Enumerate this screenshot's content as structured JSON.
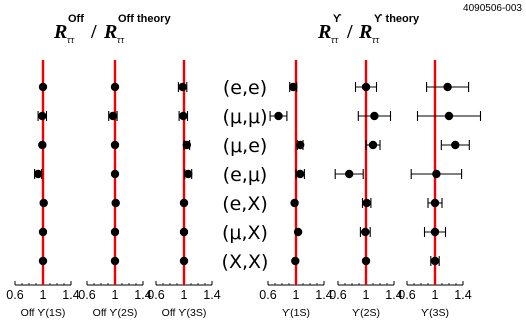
{
  "figure_id": "4090506-003",
  "titles": {
    "left": {
      "sym1": "R",
      "sub1": "ττ",
      "sup1": "Off",
      "slash": "/",
      "sym2": "R",
      "sub2": "ττ",
      "sup2": "Off theory"
    },
    "right": {
      "sym1": "R",
      "sub1": "ττ",
      "sup1": "ϒ",
      "slash": "/",
      "sym2": "R",
      "sub2": "ττ",
      "sup2": "ϒ theory"
    }
  },
  "row_labels": [
    "(e,e)",
    "(μ,μ)",
    "(μ,e)",
    "(e,μ)",
    "(e,X)",
    "(μ,X)",
    "(X,X)"
  ],
  "colors": {
    "reference_line": "#ee0000",
    "markers": "#000000",
    "axes": "#000000"
  },
  "chart_data": {
    "type": "scatter",
    "reference_value": 1,
    "panels": [
      {
        "name": "Off ϒ(1S)",
        "x_label": "Off  ϒ(1S)",
        "xlim": [
          0.6,
          1.4
        ],
        "ticks": [
          0.6,
          1,
          1.4
        ],
        "tick_labels": [
          "0.6",
          "1",
          "1.4"
        ],
        "points": [
          {
            "row": "(e,e)",
            "value": 1.0,
            "err": 0.0
          },
          {
            "row": "(μ,μ)",
            "value": 0.99,
            "err": 0.06
          },
          {
            "row": "(μ,e)",
            "value": 0.99,
            "err": 0.0
          },
          {
            "row": "(e,μ)",
            "value": 0.93,
            "err": 0.05
          },
          {
            "row": "(e,X)",
            "value": 1.01,
            "err": 0.0
          },
          {
            "row": "(μ,X)",
            "value": 1.0,
            "err": 0.0
          },
          {
            "row": "(X,X)",
            "value": 1.0,
            "err": 0.0
          }
        ]
      },
      {
        "name": "Off ϒ(2S)",
        "x_label": "Off  ϒ(2S)",
        "xlim": [
          0.6,
          1.4
        ],
        "ticks": [
          0.6,
          1,
          1.4
        ],
        "tick_labels": [
          "0.6",
          "1",
          "1.4"
        ],
        "points": [
          {
            "row": "(e,e)",
            "value": 1.0,
            "err": 0.0
          },
          {
            "row": "(μ,μ)",
            "value": 0.97,
            "err": 0.06
          },
          {
            "row": "(μ,e)",
            "value": 1.0,
            "err": 0.0
          },
          {
            "row": "(e,μ)",
            "value": 1.0,
            "err": 0.0
          },
          {
            "row": "(e,X)",
            "value": 1.01,
            "err": 0.0
          },
          {
            "row": "(μ,X)",
            "value": 1.0,
            "err": 0.0
          },
          {
            "row": "(X,X)",
            "value": 1.0,
            "err": 0.0
          }
        ]
      },
      {
        "name": "Off ϒ(3S)",
        "x_label": "Off  ϒ(3S)",
        "xlim": [
          0.6,
          1.4
        ],
        "ticks": [
          0.6,
          1,
          1.4
        ],
        "tick_labels": [
          "0.6",
          "1",
          "1.4"
        ],
        "points": [
          {
            "row": "(e,e)",
            "value": 0.98,
            "err": 0.06
          },
          {
            "row": "(μ,μ)",
            "value": 0.99,
            "err": 0.06
          },
          {
            "row": "(μ,e)",
            "value": 1.04,
            "err": 0.04
          },
          {
            "row": "(e,μ)",
            "value": 1.06,
            "err": 0.05
          },
          {
            "row": "(e,X)",
            "value": 1.0,
            "err": 0.0
          },
          {
            "row": "(μ,X)",
            "value": 1.0,
            "err": 0.0
          },
          {
            "row": "(X,X)",
            "value": 1.0,
            "err": 0.0
          }
        ]
      },
      {
        "name": "ϒ(1S)",
        "x_label": "ϒ(1S)",
        "xlim": [
          0.6,
          1.4
        ],
        "ticks": [
          0.6,
          1,
          1.4
        ],
        "tick_labels": [
          "0.6",
          "1",
          "1.4"
        ],
        "points": [
          {
            "row": "(e,e)",
            "value": 0.96,
            "err": 0.05
          },
          {
            "row": "(μ,μ)",
            "value": 0.75,
            "err": 0.12
          },
          {
            "row": "(μ,e)",
            "value": 1.06,
            "err": 0.04
          },
          {
            "row": "(e,μ)",
            "value": 1.06,
            "err": 0.06
          },
          {
            "row": "(e,X)",
            "value": 0.98,
            "err": 0.0
          },
          {
            "row": "(μ,X)",
            "value": 1.03,
            "err": 0.0
          },
          {
            "row": "(X,X)",
            "value": 0.99,
            "err": 0.0
          }
        ]
      },
      {
        "name": "ϒ(2S)",
        "x_label": "ϒ(2S)",
        "xlim": [
          0.6,
          1.4
        ],
        "ticks": [
          0.6,
          1,
          1.4
        ],
        "tick_labels": [
          "0.6",
          "1",
          "1.4"
        ],
        "points": [
          {
            "row": "(e,e)",
            "value": 1.0,
            "err": 0.15
          },
          {
            "row": "(μ,μ)",
            "value": 1.12,
            "err": 0.23
          },
          {
            "row": "(μ,e)",
            "value": 1.1,
            "err": 0.1
          },
          {
            "row": "(e,μ)",
            "value": 0.76,
            "err": 0.2
          },
          {
            "row": "(e,X)",
            "value": 1.01,
            "err": 0.06
          },
          {
            "row": "(μ,X)",
            "value": 0.99,
            "err": 0.07
          },
          {
            "row": "(X,X)",
            "value": 1.0,
            "err": 0.0
          }
        ]
      },
      {
        "name": "ϒ(3S)",
        "x_label": "ϒ(3S)",
        "xlim": [
          0.6,
          1.4
        ],
        "ticks": [
          0.6,
          1,
          1.4
        ],
        "tick_labels": [
          "0.6",
          "1",
          "1.4"
        ],
        "points": [
          {
            "row": "(e,e)",
            "value": 1.18,
            "err": 0.3
          },
          {
            "row": "(μ,μ)",
            "value": 1.2,
            "err": 0.45
          },
          {
            "row": "(μ,e)",
            "value": 1.29,
            "err": 0.2
          },
          {
            "row": "(e,μ)",
            "value": 1.02,
            "err": 0.36
          },
          {
            "row": "(e,X)",
            "value": 1.0,
            "err": 0.1
          },
          {
            "row": "(μ,X)",
            "value": 1.0,
            "err": 0.15
          },
          {
            "row": "(X,X)",
            "value": 1.0,
            "err": 0.06
          }
        ]
      }
    ]
  }
}
